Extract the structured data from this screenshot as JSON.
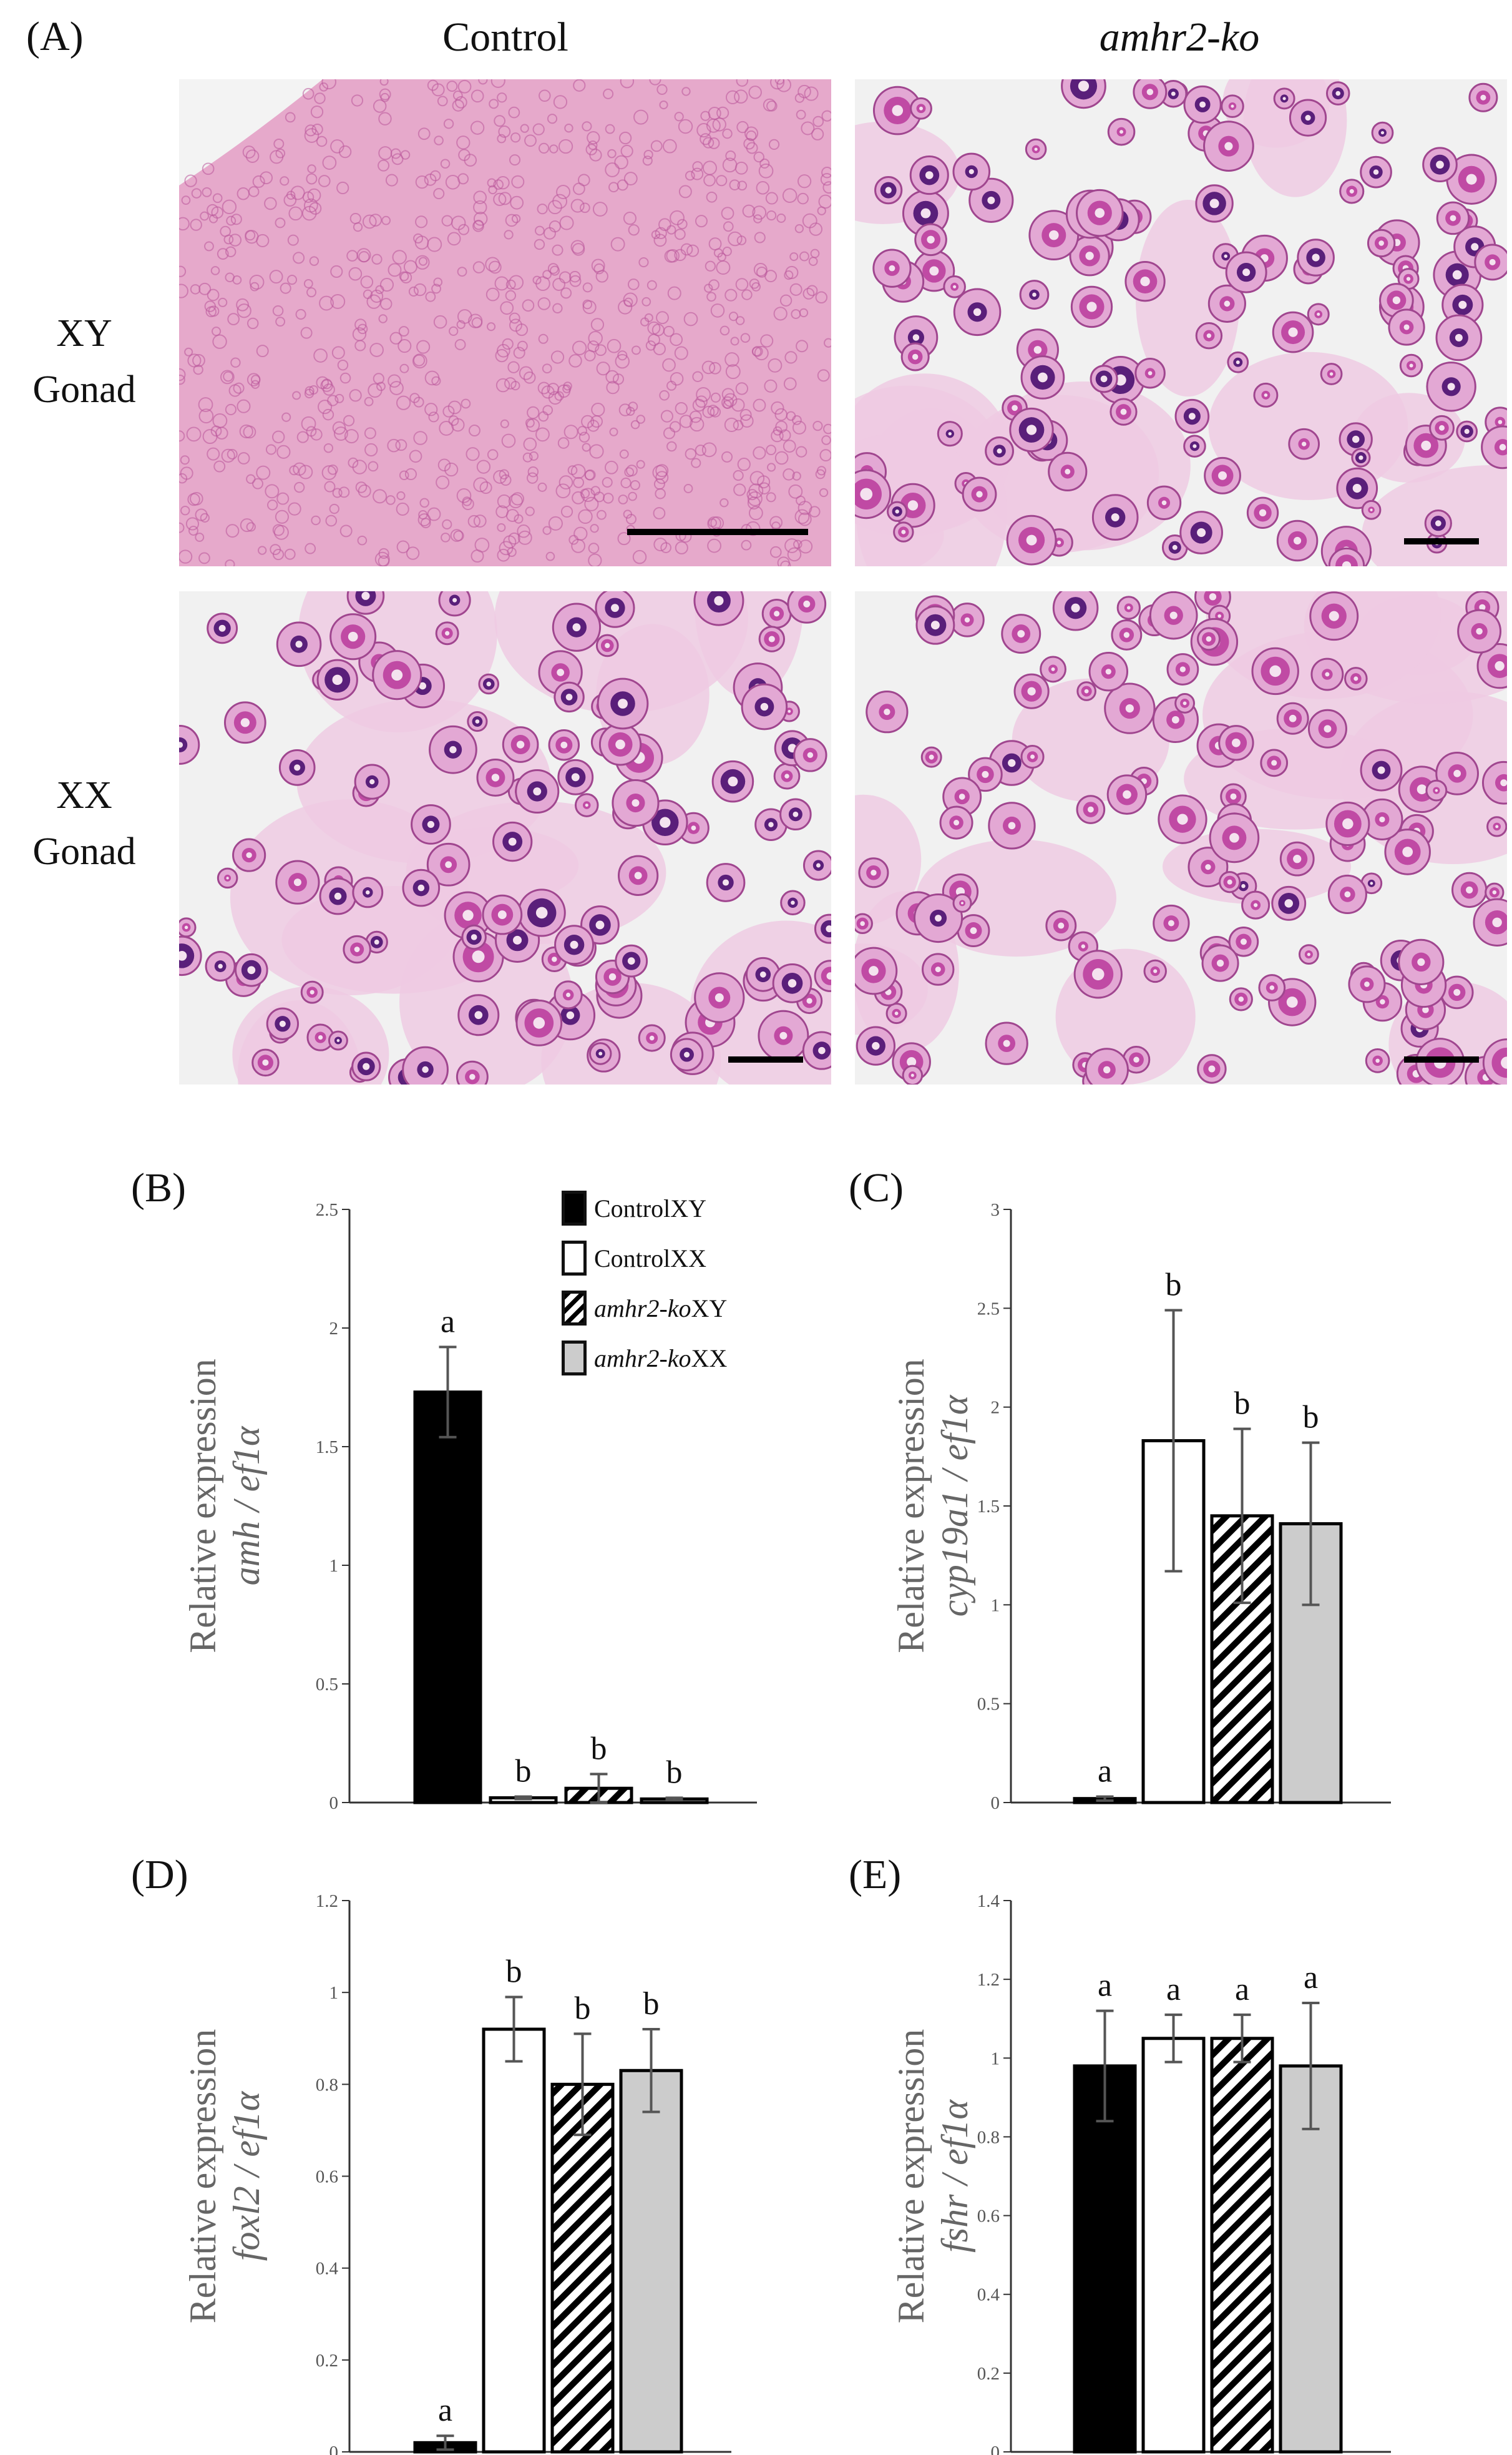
{
  "panel_a": {
    "letter": "(A)",
    "columns": [
      {
        "label": "Control",
        "italic": false
      },
      {
        "label": "amhr2-ko",
        "italic": true
      }
    ],
    "rows": [
      {
        "line1": "XY",
        "line2": "Gonad"
      },
      {
        "line1": "XX",
        "line2": "Gonad"
      }
    ],
    "images": [
      {
        "name": "micrograph-xy-control",
        "tissue": "testis"
      },
      {
        "name": "micrograph-xy-amhr2ko",
        "tissue": "ovary"
      },
      {
        "name": "micrograph-xx-control",
        "tissue": "ovary"
      },
      {
        "name": "micrograph-xx-amhr2ko",
        "tissue": "ovary"
      }
    ]
  },
  "legend": {
    "items": [
      {
        "pre": "Control",
        "post": "XY",
        "italic_pre": false,
        "fill": "solid-black"
      },
      {
        "pre": "Control",
        "post": "XX",
        "italic_pre": false,
        "fill": "white"
      },
      {
        "pre": "amhr2-ko",
        "post": " XY",
        "italic_pre": true,
        "fill": "hatched"
      },
      {
        "pre": "amhr2-ko",
        "post": " XX",
        "italic_pre": true,
        "fill": "grey"
      }
    ]
  },
  "colors": {
    "black_bar": "#000000",
    "white_bar": "#ffffff",
    "grey_bar": "#cccccc",
    "stain_pink": "#e7a6cf",
    "stain_purple": "#5a1f7a"
  },
  "chart_data": [
    {
      "panel": "(B)",
      "type": "bar",
      "ylabel_plain": "Relative expression",
      "ylabel_italic": "amh / ef1α",
      "ylim": [
        0,
        2.5
      ],
      "yticks": [
        "0",
        "0.5",
        "1",
        "1.5",
        "2",
        "2.5"
      ],
      "categories": [
        "Control XY",
        "Control XX",
        "amhr2-ko XY",
        "amhr2-ko XX"
      ],
      "values": [
        1.73,
        0.02,
        0.06,
        0.015
      ],
      "errors": [
        0.19,
        0.005,
        0.06,
        0.005
      ],
      "significance": [
        "a",
        "b",
        "b",
        "b"
      ]
    },
    {
      "panel": "(C)",
      "type": "bar",
      "ylabel_plain": "Relative expression",
      "ylabel_italic": "cyp19a1 / ef1α",
      "ylim": [
        0,
        3
      ],
      "yticks": [
        "0",
        "0.5",
        "1",
        "1.5",
        "2",
        "2.5",
        "3"
      ],
      "categories": [
        "Control XY",
        "Control XX",
        "amhr2-ko XY",
        "amhr2-ko XX"
      ],
      "values": [
        0.02,
        1.83,
        1.45,
        1.41
      ],
      "errors": [
        0.01,
        0.66,
        0.44,
        0.41
      ],
      "significance": [
        "a",
        "b",
        "b",
        "b"
      ]
    },
    {
      "panel": "(D)",
      "type": "bar",
      "ylabel_plain": "Relative expression",
      "ylabel_italic": "foxl2 / ef1α",
      "ylim": [
        0,
        1.2
      ],
      "yticks": [
        "0",
        "0.2",
        "0.4",
        "0.6",
        "0.8",
        "1",
        "1.2"
      ],
      "categories": [
        "Control XY",
        "Control XX",
        "amhr2-ko XY",
        "amhr2-ko XX"
      ],
      "values": [
        0.02,
        0.92,
        0.8,
        0.83
      ],
      "errors": [
        0.015,
        0.07,
        0.11,
        0.09
      ],
      "significance": [
        "a",
        "b",
        "b",
        "b"
      ]
    },
    {
      "panel": "(E)",
      "type": "bar",
      "ylabel_plain": "Relative expression",
      "ylabel_italic": "fshr / ef1α",
      "ylim": [
        0,
        1.4
      ],
      "yticks": [
        "0",
        "0.2",
        "0.4",
        "0.6",
        "0.8",
        "1",
        "1.2",
        "1.4"
      ],
      "categories": [
        "Control XY",
        "Control XX",
        "amhr2-ko XY",
        "amhr2-ko XX"
      ],
      "values": [
        0.98,
        1.05,
        1.05,
        0.98
      ],
      "errors": [
        0.14,
        0.06,
        0.06,
        0.16
      ],
      "significance": [
        "a",
        "a",
        "a",
        "a"
      ]
    }
  ]
}
